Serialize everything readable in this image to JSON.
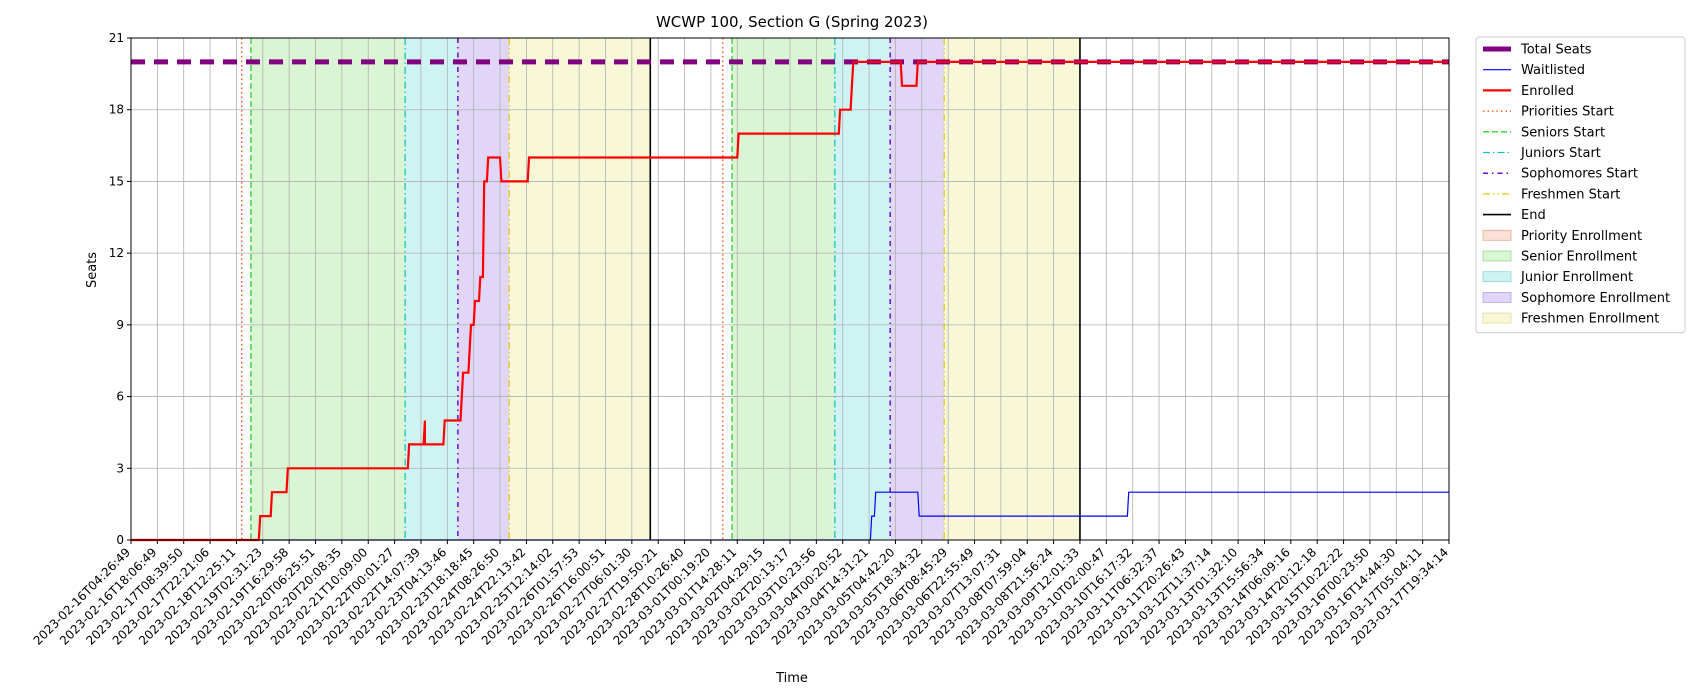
{
  "chart_data": {
    "type": "line",
    "title": "WCWP 100, Section G (Spring 2023)",
    "xlabel": "Time",
    "ylabel": "Seats",
    "ylim": [
      0,
      21
    ],
    "yticks": [
      0,
      3,
      6,
      9,
      12,
      15,
      18,
      21
    ],
    "grid": true,
    "legend_position": "outside-right-top",
    "x_ticks": [
      "2023-02-16T04:26:49",
      "2023-02-16T18:06:49",
      "2023-02-17T08:39:50",
      "2023-02-17T22:21:06",
      "2023-02-18T12:25:11",
      "2023-02-19T02:31:23",
      "2023-02-19T16:29:58",
      "2023-02-20T06:25:51",
      "2023-02-20T20:08:35",
      "2023-02-21T10:09:00",
      "2023-02-22T00:01:27",
      "2023-02-22T14:07:39",
      "2023-02-23T04:13:46",
      "2023-02-23T18:18:45",
      "2023-02-24T08:26:50",
      "2023-02-24T22:13:42",
      "2023-02-25T12:14:02",
      "2023-02-26T01:57:53",
      "2023-02-26T16:00:51",
      "2023-02-27T06:01:30",
      "2023-02-27T19:50:21",
      "2023-02-28T10:26:40",
      "2023-03-01T00:19:20",
      "2023-03-01T14:28:11",
      "2023-03-02T04:29:15",
      "2023-03-02T20:13:17",
      "2023-03-03T10:23:56",
      "2023-03-04T00:20:52",
      "2023-03-04T14:31:21",
      "2023-03-05T04:42:20",
      "2023-03-05T18:34:32",
      "2023-03-06T08:45:29",
      "2023-03-06T22:55:49",
      "2023-03-07T13:07:31",
      "2023-03-08T07:59:04",
      "2023-03-08T21:56:24",
      "2023-03-09T12:01:33",
      "2023-03-10T02:00:47",
      "2023-03-10T16:17:32",
      "2023-03-11T06:32:37",
      "2023-03-11T20:26:43",
      "2023-03-12T11:37:14",
      "2023-03-13T01:32:10",
      "2023-03-13T15:56:34",
      "2023-03-14T06:09:16",
      "2023-03-14T20:12:18",
      "2023-03-15T10:22:22",
      "2023-03-16T00:23:50",
      "2023-03-16T14:44:30",
      "2023-03-17T05:04:11",
      "2023-03-17T19:34:14"
    ],
    "x_range": [
      0,
      50
    ],
    "regions": [
      {
        "name": "Senior Enrollment",
        "start": 4.55,
        "end": 10.4,
        "color": "#daf5d3"
      },
      {
        "name": "Junior Enrollment",
        "start": 10.4,
        "end": 12.4,
        "color": "#cff3f3"
      },
      {
        "name": "Sophomore Enrollment",
        "start": 12.4,
        "end": 14.35,
        "color": "#e1d6f7"
      },
      {
        "name": "Freshmen Enrollment",
        "start": 14.35,
        "end": 19.7,
        "color": "#f8f8d8"
      },
      {
        "name": "Senior Enrollment",
        "start": 22.8,
        "end": 26.7,
        "color": "#daf5d3"
      },
      {
        "name": "Junior Enrollment",
        "start": 26.7,
        "end": 28.8,
        "color": "#cff3f3"
      },
      {
        "name": "Sophomore Enrollment",
        "start": 28.8,
        "end": 30.85,
        "color": "#e1d6f7"
      },
      {
        "name": "Freshmen Enrollment",
        "start": 30.85,
        "end": 36.0,
        "color": "#f8f8d8"
      }
    ],
    "vlines": [
      {
        "kind": "Priorities Start",
        "x": 4.2,
        "color": "#ff4500",
        "dash": "1.5,3",
        "width": 1.3
      },
      {
        "kind": "Seniors Start",
        "x": 4.55,
        "color": "#2ecc2e",
        "dash": "6,3",
        "width": 1.3
      },
      {
        "kind": "Juniors Start",
        "x": 10.4,
        "color": "#17c3c3",
        "dash": "7,3,1.5,3",
        "width": 1.3
      },
      {
        "kind": "Sophomores Start",
        "x": 12.4,
        "color": "#6a0dcc",
        "dash": "5,4,1.5,4",
        "width": 1.5
      },
      {
        "kind": "Freshmen Start",
        "x": 14.35,
        "color": "#e6c700",
        "dash": "7,3,1.5,3,1.5,3",
        "width": 1.2
      },
      {
        "kind": "End",
        "x": 19.7,
        "color": "#000000",
        "dash": "",
        "width": 1.6
      },
      {
        "kind": "Priorities Start",
        "x": 22.45,
        "color": "#ff4500",
        "dash": "1.5,3",
        "width": 1.3
      },
      {
        "kind": "Seniors Start",
        "x": 22.8,
        "color": "#2ecc2e",
        "dash": "6,3",
        "width": 1.3
      },
      {
        "kind": "Juniors Start",
        "x": 26.7,
        "color": "#17c3c3",
        "dash": "7,3,1.5,3",
        "width": 1.3
      },
      {
        "kind": "Sophomores Start",
        "x": 28.8,
        "color": "#6a0dcc",
        "dash": "5,4,1.5,4",
        "width": 1.5
      },
      {
        "kind": "Freshmen Start",
        "x": 30.85,
        "color": "#e6c700",
        "dash": "7,3,1.5,3,1.5,3",
        "width": 1.2
      },
      {
        "kind": "End",
        "x": 36.0,
        "color": "#000000",
        "dash": "",
        "width": 1.6
      }
    ],
    "series": [
      {
        "name": "Total Seats",
        "color": "#800080",
        "points": [
          [
            0,
            20
          ],
          [
            50,
            20
          ]
        ]
      },
      {
        "name": "Waitlisted",
        "color": "#0000ff",
        "points": [
          [
            0,
            0
          ],
          [
            28.05,
            0
          ],
          [
            28.1,
            1
          ],
          [
            28.2,
            1
          ],
          [
            28.25,
            2
          ],
          [
            29.85,
            2
          ],
          [
            29.9,
            1
          ],
          [
            37.8,
            1
          ],
          [
            37.85,
            2
          ],
          [
            50,
            2
          ]
        ]
      },
      {
        "name": "Enrolled",
        "color": "#ff0000",
        "points": [
          [
            0,
            0
          ],
          [
            4.85,
            0
          ],
          [
            4.9,
            1
          ],
          [
            5.3,
            1
          ],
          [
            5.35,
            2
          ],
          [
            5.9,
            2
          ],
          [
            5.95,
            3
          ],
          [
            10.5,
            3
          ],
          [
            10.55,
            4
          ],
          [
            11.1,
            4
          ],
          [
            11.15,
            5
          ],
          [
            11.15,
            4
          ],
          [
            11.85,
            4
          ],
          [
            11.9,
            5
          ],
          [
            12.5,
            5
          ],
          [
            12.55,
            6
          ],
          [
            12.6,
            7
          ],
          [
            12.8,
            7
          ],
          [
            12.85,
            8
          ],
          [
            12.9,
            9
          ],
          [
            13.0,
            9
          ],
          [
            13.05,
            10
          ],
          [
            13.2,
            10
          ],
          [
            13.25,
            11
          ],
          [
            13.35,
            11
          ],
          [
            13.4,
            15
          ],
          [
            13.5,
            15
          ],
          [
            13.55,
            16
          ],
          [
            14.0,
            16
          ],
          [
            14.05,
            15
          ],
          [
            15.05,
            15
          ],
          [
            15.1,
            16
          ],
          [
            23.0,
            16
          ],
          [
            23.05,
            17
          ],
          [
            26.85,
            17
          ],
          [
            26.9,
            18
          ],
          [
            27.3,
            18
          ],
          [
            27.35,
            19
          ],
          [
            27.4,
            20
          ],
          [
            29.2,
            20
          ],
          [
            29.25,
            19
          ],
          [
            29.8,
            19
          ],
          [
            29.85,
            20
          ],
          [
            50,
            20
          ]
        ]
      }
    ],
    "legend": [
      {
        "label": "Total Seats",
        "kind": "line",
        "color": "#800080",
        "width": 5,
        "dash": ""
      },
      {
        "label": "Waitlisted",
        "kind": "line",
        "color": "#0000ff",
        "width": 1.2,
        "dash": ""
      },
      {
        "label": "Enrolled",
        "kind": "line",
        "color": "#ff0000",
        "width": 2.2,
        "dash": ""
      },
      {
        "label": "Priorities Start",
        "kind": "line",
        "color": "#ff4500",
        "width": 1.3,
        "dash": "1.5,3"
      },
      {
        "label": "Seniors Start",
        "kind": "line",
        "color": "#2ecc2e",
        "width": 1.3,
        "dash": "6,3"
      },
      {
        "label": "Juniors Start",
        "kind": "line",
        "color": "#17c3c3",
        "width": 1.3,
        "dash": "7,3,1.5,3"
      },
      {
        "label": "Sophomores Start",
        "kind": "line",
        "color": "#6a0dcc",
        "width": 1.5,
        "dash": "5,4,1.5,4"
      },
      {
        "label": "Freshmen Start",
        "kind": "line",
        "color": "#e6c700",
        "width": 1.2,
        "dash": "7,3,1.5,3,1.5,3"
      },
      {
        "label": "End",
        "kind": "line",
        "color": "#000000",
        "width": 1.6,
        "dash": ""
      },
      {
        "label": "Priority Enrollment",
        "kind": "patch",
        "color": "#fbe0d6",
        "edge": "#e8a890"
      },
      {
        "label": "Senior Enrollment",
        "kind": "patch",
        "color": "#daf5d3",
        "edge": "#9ad69a"
      },
      {
        "label": "Junior Enrollment",
        "kind": "patch",
        "color": "#cff3f3",
        "edge": "#8ad8d8"
      },
      {
        "label": "Sophomore Enrollment",
        "kind": "patch",
        "color": "#e1d6f7",
        "edge": "#b4a0e0"
      },
      {
        "label": "Freshmen Enrollment",
        "kind": "patch",
        "color": "#f8f8d8",
        "edge": "#dede9a"
      }
    ]
  }
}
